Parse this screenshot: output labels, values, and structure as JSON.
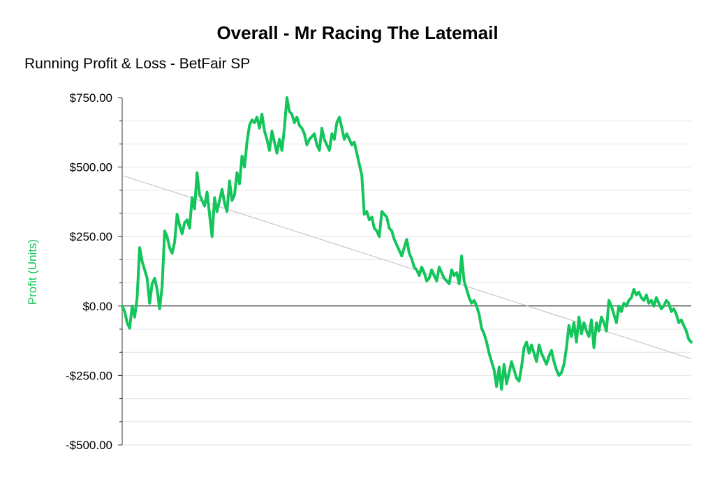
{
  "chart_data": {
    "type": "line",
    "title": "Overall - Mr Racing The Latemail",
    "subtitle": "Running Profit & Loss - BetFair SP",
    "xlabel": "",
    "ylabel": "Profit (Units)",
    "ylim": [
      -500,
      750
    ],
    "yticks": [
      750,
      500,
      250,
      0,
      -250,
      -500
    ],
    "ytick_labels": [
      "$750.00",
      "$500.00",
      "$250.00",
      "$0.00",
      "-$250.00",
      "-$500.00"
    ],
    "grid": true,
    "legend": "none",
    "colors": {
      "series": "#13c55a",
      "ylabel": "#13c55a",
      "trend": "#bdbdbd",
      "grid": "#e4e4e4",
      "zero_line": "#000000"
    },
    "series": [
      {
        "values": [
          0,
          -20,
          -60,
          -80,
          0,
          -40,
          30,
          210,
          160,
          130,
          100,
          10,
          80,
          100,
          60,
          -10,
          70,
          270,
          250,
          210,
          190,
          230,
          330,
          290,
          260,
          300,
          310,
          280,
          390,
          350,
          480,
          400,
          380,
          360,
          410,
          330,
          250,
          390,
          340,
          380,
          420,
          370,
          340,
          450,
          380,
          400,
          480,
          440,
          540,
          500,
          590,
          650,
          670,
          660,
          680,
          640,
          690,
          630,
          600,
          560,
          630,
          590,
          550,
          600,
          560,
          640,
          750,
          700,
          690,
          660,
          680,
          650,
          640,
          620,
          580,
          600,
          610,
          620,
          580,
          560,
          640,
          600,
          580,
          560,
          620,
          600,
          660,
          680,
          640,
          600,
          620,
          600,
          580,
          590,
          550,
          510,
          470,
          330,
          340,
          310,
          320,
          280,
          270,
          250,
          340,
          330,
          320,
          280,
          270,
          240,
          220,
          200,
          180,
          210,
          240,
          190,
          170,
          140,
          130,
          110,
          140,
          120,
          90,
          100,
          130,
          110,
          90,
          140,
          120,
          100,
          90,
          80,
          130,
          110,
          120,
          80,
          180,
          90,
          60,
          30,
          10,
          20,
          0,
          -30,
          -80,
          -100,
          -130,
          -170,
          -200,
          -230,
          -290,
          -220,
          -300,
          -210,
          -280,
          -240,
          -200,
          -230,
          -260,
          -270,
          -220,
          -150,
          -130,
          -170,
          -140,
          -170,
          -200,
          -140,
          -170,
          -190,
          -210,
          -180,
          -160,
          -200,
          -230,
          -250,
          -240,
          -210,
          -150,
          -70,
          -110,
          -60,
          -130,
          -40,
          -100,
          -60,
          -90,
          -110,
          -50,
          -150,
          -60,
          -90,
          -40,
          -60,
          -90,
          20,
          0,
          -30,
          -60,
          0,
          -20,
          10,
          0,
          20,
          30,
          60,
          40,
          50,
          30,
          20,
          40,
          10,
          20,
          0,
          30,
          10,
          -10,
          0,
          20,
          10,
          -20,
          -10,
          -30,
          -60,
          -50,
          -70,
          -90,
          -120,
          -130
        ]
      }
    ],
    "trendline": {
      "values": [
        470,
        -190
      ]
    }
  }
}
